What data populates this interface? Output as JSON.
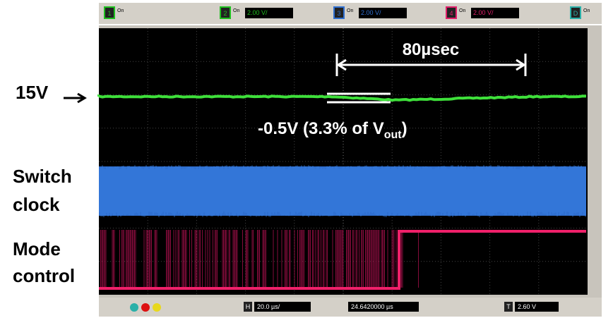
{
  "annotations": {
    "level": "15V",
    "interval": "80µsec",
    "droop": {
      "main": "-0.5V (3.3% of V",
      "subscript": "out",
      "close": ")"
    }
  },
  "labels": {
    "switch": [
      "Switch",
      "clock"
    ],
    "mode": [
      "Mode",
      "control"
    ]
  },
  "toolbar": {
    "channels": [
      {
        "number": "1",
        "state": "On"
      },
      {
        "number": "2",
        "state": "On",
        "scale": "2.00 V/"
      },
      {
        "number": "3",
        "state": "On",
        "scale": "2.00 V/"
      },
      {
        "number": "4",
        "state": "On",
        "scale": "2.00 V/"
      },
      {
        "number": "D",
        "state": "On"
      }
    ]
  },
  "bottom_bar": {
    "horizontal": {
      "key": "H",
      "scale": "20.0 µs/"
    },
    "delay": "24.6420000 µs",
    "trigger": {
      "key": "T",
      "level": "2.60 V"
    }
  }
}
